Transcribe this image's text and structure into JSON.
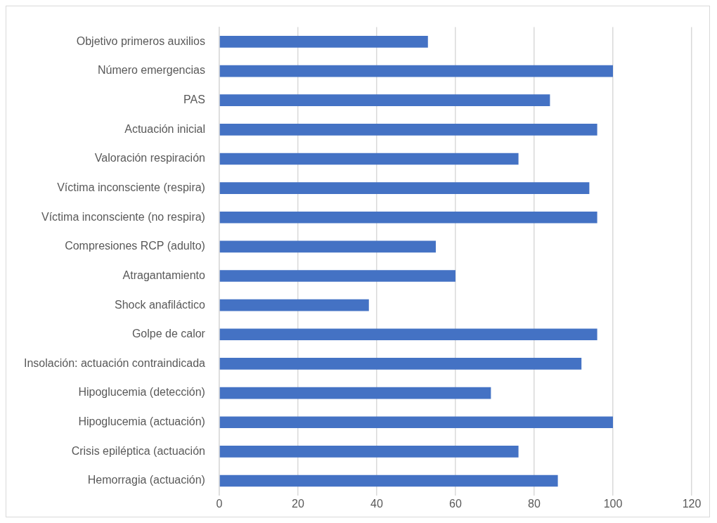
{
  "chart_data": {
    "type": "bar",
    "orientation": "horizontal",
    "categories": [
      "Objetivo primeros auxilios",
      "Número emergencias",
      "PAS",
      "Actuación inicial",
      "Valoración respiración",
      "Víctima inconsciente (respira)",
      "Víctima inconsciente (no respira)",
      "Compresiones RCP (adulto)",
      "Atragantamiento",
      "Shock anafiláctico",
      "Golpe de calor",
      "Insolación: actuación contraindicada",
      "Hipoglucemia (detección)",
      "Hipoglucemia (actuación)",
      "Crisis epiléptica (actuación",
      "Hemorragia (actuación)"
    ],
    "values": [
      53,
      100,
      84,
      96,
      76,
      94,
      96,
      55,
      60,
      38,
      96,
      92,
      69,
      100,
      76,
      86
    ],
    "color": "#4472c4",
    "xlim": [
      0,
      120
    ],
    "xticks": [
      0,
      20,
      40,
      60,
      80,
      100,
      120
    ],
    "grid": "x",
    "legend": false
  }
}
